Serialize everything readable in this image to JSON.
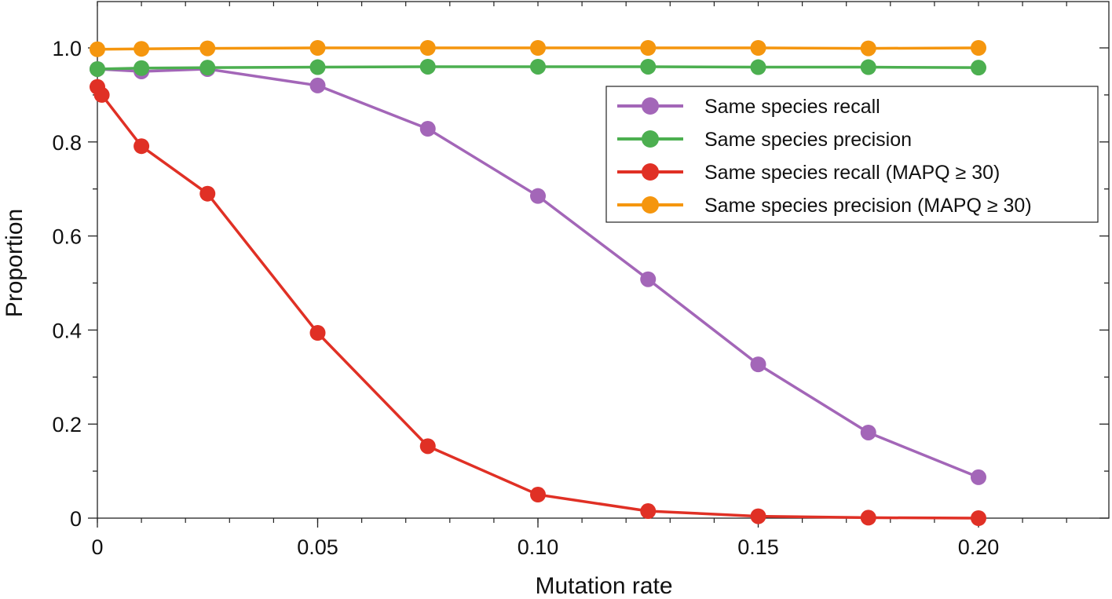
{
  "chart_data": {
    "type": "line",
    "title": "",
    "xlabel": "Mutation rate",
    "ylabel": "Proportion",
    "xlim": [
      0,
      0.23
    ],
    "ylim": [
      0,
      1.1
    ],
    "xticks": [
      0,
      0.05,
      0.1,
      0.15,
      0.2
    ],
    "xtick_labels": [
      "0",
      "0.05",
      "0.10",
      "0.15",
      "0.20"
    ],
    "yticks": [
      0,
      0.2,
      0.4,
      0.6,
      0.8,
      1.0
    ],
    "ytick_labels": [
      "0",
      "0.2",
      "0.4",
      "0.6",
      "0.8",
      "1.0"
    ],
    "grid": false,
    "legend_position": "center-right",
    "x": [
      0,
      0.01,
      0.025,
      0.05,
      0.075,
      0.1,
      0.125,
      0.15,
      0.175,
      0.2
    ],
    "series": [
      {
        "name": "Same species recall",
        "color": "#a366b8",
        "values": [
          0.955,
          0.95,
          0.955,
          0.92,
          0.828,
          0.685,
          0.508,
          0.327,
          0.182,
          0.087
        ]
      },
      {
        "name": "Same species precision",
        "color": "#4caf50",
        "values": [
          0.955,
          0.957,
          0.958,
          0.959,
          0.96,
          0.96,
          0.96,
          0.959,
          0.959,
          0.958
        ]
      },
      {
        "name": "Same species recall (MAPQ ≥ 30)",
        "color": "#e03025",
        "x": [
          0,
          0.001,
          0.01,
          0.025,
          0.05,
          0.075,
          0.1,
          0.125,
          0.15,
          0.175,
          0.2
        ],
        "values": [
          0.917,
          0.9,
          0.791,
          0.69,
          0.394,
          0.153,
          0.05,
          0.015,
          0.004,
          0.001,
          0.0
        ]
      },
      {
        "name": "Same species precision (MAPQ ≥ 30)",
        "color": "#f5960e",
        "values": [
          0.997,
          0.998,
          0.999,
          1.0,
          1.0,
          1.0,
          1.0,
          1.0,
          0.999,
          1.0
        ]
      }
    ]
  }
}
